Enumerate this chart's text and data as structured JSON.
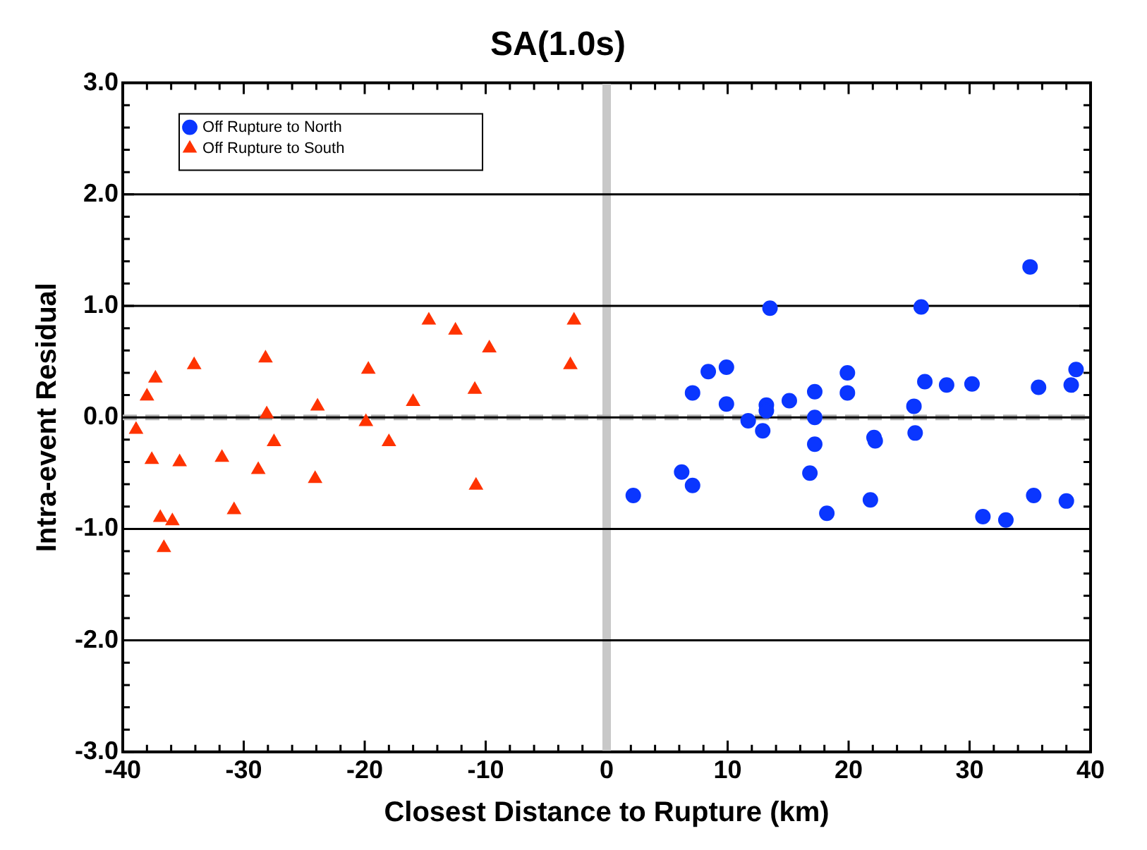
{
  "chart_data": {
    "type": "scatter",
    "title": "SA(1.0s)",
    "xlabel": "Closest Distance to Rupture (km)",
    "ylabel": "Intra-event Residual",
    "xlim": [
      -40,
      40
    ],
    "xticks": [
      -40,
      -30,
      -20,
      -10,
      0,
      10,
      20,
      30,
      40
    ],
    "ylim": [
      -3,
      3
    ],
    "yticks": [
      {
        "value": -3,
        "label": "-3.0"
      },
      {
        "value": -2,
        "label": "-2.0"
      },
      {
        "value": -1,
        "label": "-1.0"
      },
      {
        "value": 0,
        "label": "0.0"
      },
      {
        "value": 1,
        "label": "1.0"
      },
      {
        "value": 2,
        "label": "2.0"
      },
      {
        "value": 3,
        "label": "3.0"
      }
    ],
    "grid": "y",
    "legend": "top left",
    "ref_lines": [
      {
        "axis": "x",
        "value": 0,
        "color": "#c8c8c8",
        "line_style": "solid"
      },
      {
        "axis": "y",
        "value": 0,
        "color": "#b4b4b4",
        "line_style": "dashed"
      }
    ],
    "series": [
      {
        "name": "Off Rupture to North",
        "color": "#0a36ff",
        "marker": "circle",
        "x": [
          2.2,
          6.2,
          7.1,
          7.1,
          8.4,
          9.9,
          9.9,
          11.7,
          12.9,
          13.2,
          13.2,
          13.5,
          15.1,
          16.8,
          17.2,
          17.2,
          17.2,
          18.2,
          19.9,
          19.9,
          21.8,
          22.1,
          22.2,
          25.4,
          25.5,
          26.0,
          26.3,
          28.1,
          30.2,
          31.1,
          33.0,
          35.0,
          35.3,
          35.7,
          38.0,
          38.4,
          38.8
        ],
        "values": [
          -0.7,
          -0.49,
          -0.61,
          0.22,
          0.41,
          0.45,
          0.12,
          -0.03,
          -0.12,
          0.11,
          0.06,
          0.98,
          0.15,
          -0.5,
          0.23,
          0.0,
          -0.24,
          -0.86,
          0.4,
          0.22,
          -0.74,
          -0.18,
          -0.21,
          0.1,
          -0.14,
          0.99,
          0.32,
          0.29,
          0.3,
          -0.89,
          -0.92,
          1.35,
          -0.7,
          0.27,
          -0.75,
          0.29,
          0.43
        ]
      },
      {
        "name": "Off Rupture to South",
        "color": "#ff3300",
        "marker": "triangle",
        "x": [
          -38.9,
          -38.0,
          -37.3,
          -37.6,
          -36.9,
          -35.9,
          -36.6,
          -35.3,
          -34.1,
          -31.8,
          -30.8,
          -28.8,
          -28.2,
          -28.1,
          -27.5,
          -23.9,
          -24.1,
          -19.7,
          -19.9,
          -18.0,
          -16.0,
          -14.7,
          -12.5,
          -10.9,
          -10.8,
          -9.7,
          -3.0,
          -2.7
        ],
        "values": [
          -0.11,
          0.19,
          0.35,
          -0.38,
          -0.9,
          -0.93,
          -1.17,
          -0.4,
          0.47,
          -0.36,
          -0.83,
          -0.47,
          0.53,
          0.03,
          -0.22,
          0.1,
          -0.55,
          0.43,
          -0.04,
          -0.22,
          0.14,
          0.87,
          0.78,
          0.25,
          -0.61,
          0.62,
          0.47,
          0.87
        ]
      }
    ]
  }
}
